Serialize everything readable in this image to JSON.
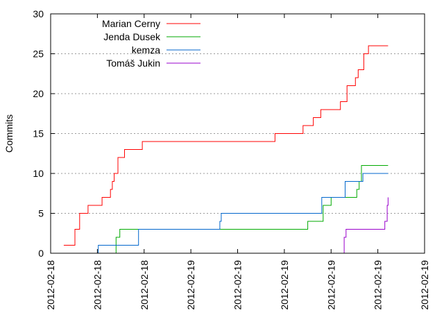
{
  "chart_data": {
    "type": "line",
    "title": "",
    "xlabel": "",
    "ylabel": "Commits",
    "ylim": [
      0,
      30
    ],
    "yticks": [
      0,
      5,
      10,
      15,
      20,
      25,
      30
    ],
    "xticks": [
      "2012-02-18",
      "2012-02-18",
      "2012-02-18",
      "2012-02-19",
      "2012-02-19",
      "2012-02-19",
      "2012-02-19",
      "2012-02-19",
      "2012-02-19"
    ],
    "grid": "horizontal, dotted",
    "legend_position": "top-left",
    "series": [
      {
        "name": "Marian Cerny",
        "color": "#ff0000",
        "points": [
          [
            0.28,
            1
          ],
          [
            0.52,
            3
          ],
          [
            0.62,
            5
          ],
          [
            0.8,
            6
          ],
          [
            0.95,
            6
          ],
          [
            1.1,
            7
          ],
          [
            1.28,
            8
          ],
          [
            1.32,
            9
          ],
          [
            1.36,
            10
          ],
          [
            1.4,
            10
          ],
          [
            1.44,
            12
          ],
          [
            1.58,
            13
          ],
          [
            1.78,
            13
          ],
          [
            1.9,
            13
          ],
          [
            1.96,
            14
          ],
          [
            2.2,
            14
          ],
          [
            3.2,
            14
          ],
          [
            4.8,
            15
          ],
          [
            5.4,
            16
          ],
          [
            5.62,
            17
          ],
          [
            5.7,
            17
          ],
          [
            5.78,
            18
          ],
          [
            6.15,
            18
          ],
          [
            6.2,
            19
          ],
          [
            6.28,
            19
          ],
          [
            6.34,
            21
          ],
          [
            6.48,
            21
          ],
          [
            6.52,
            22
          ],
          [
            6.58,
            23
          ],
          [
            6.65,
            23
          ],
          [
            6.7,
            25
          ],
          [
            6.8,
            26
          ],
          [
            7.22,
            26
          ]
        ]
      },
      {
        "name": "Jenda Dusek",
        "color": "#00aa00",
        "points": [
          [
            1.38,
            0
          ],
          [
            1.4,
            2
          ],
          [
            1.48,
            3
          ],
          [
            2.5,
            3
          ],
          [
            5.35,
            3
          ],
          [
            5.5,
            4
          ],
          [
            5.75,
            4
          ],
          [
            5.83,
            6
          ],
          [
            6,
            7
          ],
          [
            6.5,
            7
          ],
          [
            6.55,
            8
          ],
          [
            6.6,
            9
          ],
          [
            6.65,
            11
          ],
          [
            7.22,
            11
          ]
        ]
      },
      {
        "name": "kemza",
        "color": "#0066cc",
        "points": [
          [
            0.95,
            0
          ],
          [
            1.02,
            1
          ],
          [
            1.3,
            1
          ],
          [
            1.6,
            1
          ],
          [
            1.88,
            3
          ],
          [
            3.62,
            4
          ],
          [
            3.65,
            5
          ],
          [
            5.68,
            5
          ],
          [
            5.8,
            7
          ],
          [
            6.05,
            7
          ],
          [
            6.3,
            9
          ],
          [
            6.55,
            9
          ],
          [
            6.68,
            10
          ],
          [
            7.22,
            10
          ]
        ]
      },
      {
        "name": "Tomáš Jukin",
        "color": "#9900cc",
        "points": [
          [
            6.2,
            0
          ],
          [
            6.28,
            2
          ],
          [
            6.32,
            3
          ],
          [
            6.85,
            3
          ],
          [
            7.15,
            4
          ],
          [
            7.2,
            6
          ],
          [
            7.22,
            7
          ]
        ]
      }
    ]
  }
}
